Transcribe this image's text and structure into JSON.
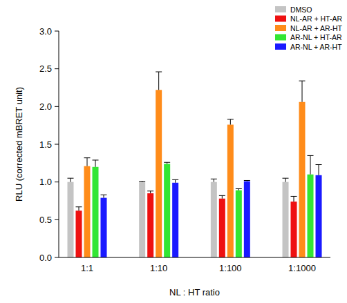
{
  "chart_data": {
    "type": "bar",
    "x_label": "NL : HT ratio",
    "y_label": "RLU (corrected mBRET unit)",
    "categories": [
      "1:1",
      "1:10",
      "1:100",
      "1:1000"
    ],
    "series": [
      {
        "name": "DMSO",
        "color": "#c4c4c4",
        "values": [
          1.0,
          1.0,
          1.0,
          1.0
        ],
        "errors": [
          0.05,
          0.01,
          0.04,
          0.05
        ]
      },
      {
        "name": "NL-AR + HT-AR",
        "color": "#ee1111",
        "values": [
          0.62,
          0.85,
          0.78,
          0.74
        ],
        "errors": [
          0.05,
          0.03,
          0.04,
          0.07
        ]
      },
      {
        "name": "NL-AR + AR-HT",
        "color": "#ff8c1a",
        "values": [
          1.21,
          2.22,
          1.76,
          2.06
        ],
        "errors": [
          0.11,
          0.24,
          0.07,
          0.28
        ]
      },
      {
        "name": "AR-NL + HT-AR",
        "color": "#33e633",
        "values": [
          1.2,
          1.24,
          0.89,
          1.1
        ],
        "errors": [
          0.09,
          0.02,
          0.02,
          0.25
        ]
      },
      {
        "name": "AR-NL + AR-HT",
        "color": "#1a1aff",
        "values": [
          0.79,
          0.99,
          1.01,
          1.09
        ],
        "errors": [
          0.04,
          0.04,
          0.01,
          0.14
        ]
      }
    ],
    "ylim": [
      0,
      3
    ],
    "yticks": [
      {
        "value": 0,
        "label": "0.0"
      },
      0.5,
      {
        "value": 1,
        "label": "1.0"
      },
      1.5,
      {
        "value": 2,
        "label": "2.0"
      },
      2.5,
      {
        "value": 3,
        "label": "3.0"
      }
    ],
    "legend": "upper right"
  }
}
